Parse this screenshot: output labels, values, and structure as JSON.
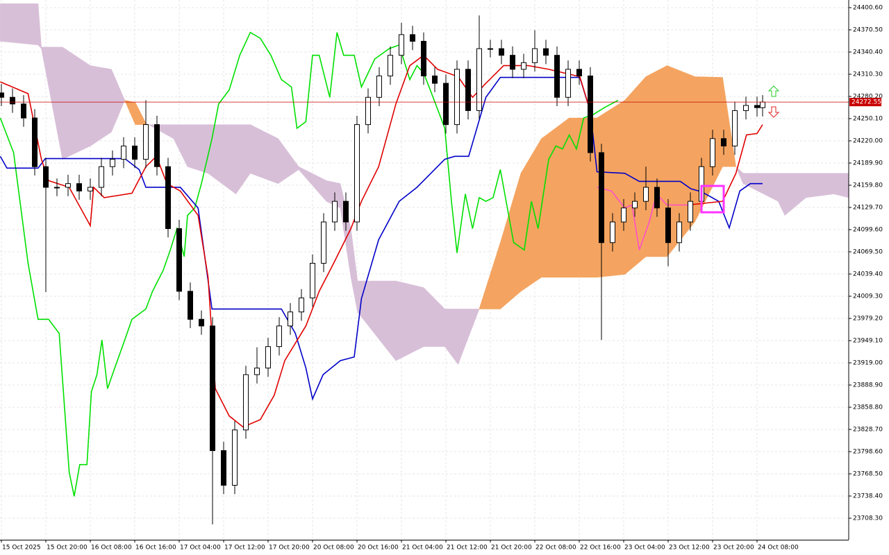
{
  "chart_data": {
    "type": "candlestick",
    "xlim": [
      -0.25,
      152.5
    ],
    "ylim": [
      23679.15,
      24410.95
    ],
    "grid": true,
    "xticks": [
      {
        "value": 0,
        "label": "15 Oct 2025"
      },
      {
        "value": 8,
        "label": "15 Oct 20:00"
      },
      {
        "value": 16,
        "label": "16 Oct 08:00"
      },
      {
        "value": 24,
        "label": "16 Oct 16:00"
      },
      {
        "value": 32,
        "label": "17 Oct 04:00"
      },
      {
        "value": 40,
        "label": "17 Oct 12:00"
      },
      {
        "value": 48,
        "label": "17 Oct 20:00"
      },
      {
        "value": 56,
        "label": "20 Oct 08:00"
      },
      {
        "value": 64,
        "label": "20 Oct 16:00"
      },
      {
        "value": 72,
        "label": "21 Oct 04:00"
      },
      {
        "value": 80,
        "label": "21 Oct 12:00"
      },
      {
        "value": 88,
        "label": "21 Oct 20:00"
      },
      {
        "value": 96,
        "label": "22 Oct 08:00"
      },
      {
        "value": 104,
        "label": "22 Oct 16:00"
      },
      {
        "value": 112,
        "label": "23 Oct 04:00"
      },
      {
        "value": 120,
        "label": "23 Oct 12:00"
      },
      {
        "value": 128,
        "label": "23 Oct 20:00"
      },
      {
        "value": 136,
        "label": "24 Oct 08:00"
      }
    ],
    "yticks": [
      {
        "value": 24400.6,
        "label": "24400.60"
      },
      {
        "value": 24370.5,
        "label": "24370.50"
      },
      {
        "value": 24340.4,
        "label": "24340.40"
      },
      {
        "value": 24310.3,
        "label": "24310.30"
      },
      {
        "value": 24280.2,
        "label": "24280.20"
      },
      {
        "value": 24250.1,
        "label": "24250.10"
      },
      {
        "value": 24220,
        "label": "24220.00"
      },
      {
        "value": 24189.9,
        "label": "24189.90"
      },
      {
        "value": 24159.8,
        "label": "24159.80"
      },
      {
        "value": 24129.7,
        "label": "24129.70"
      },
      {
        "value": 24099.6,
        "label": "24099.60"
      },
      {
        "value": 24069.5,
        "label": "24069.50"
      },
      {
        "value": 24039.4,
        "label": "24039.40"
      },
      {
        "value": 24009.3,
        "label": "24009.30"
      },
      {
        "value": 23979.2,
        "label": "23979.20"
      },
      {
        "value": 23949.1,
        "label": "23949.10"
      },
      {
        "value": 23919,
        "label": "23919.00"
      },
      {
        "value": 23888.9,
        "label": "23888.90"
      },
      {
        "value": 23858.8,
        "label": "23858.80"
      },
      {
        "value": 23828.7,
        "label": "23828.70"
      },
      {
        "value": 23798.6,
        "label": "23798.60"
      },
      {
        "value": 23768.5,
        "label": "23768.50"
      },
      {
        "value": 23738.4,
        "label": "23738.40"
      },
      {
        "value": 23708.3,
        "label": "23708.30"
      }
    ],
    "last_price": 24272.55,
    "last_price_color": "#c80000",
    "candles": {
      "up_color": "#ffffff",
      "down_color": "#000000",
      "edge_color": "#000000",
      "x": [
        0,
        2,
        4,
        6,
        8,
        10,
        12,
        14,
        16,
        18,
        20,
        22,
        24,
        26,
        28,
        30,
        32,
        34,
        36,
        38,
        40,
        42,
        44,
        46,
        48,
        50,
        52,
        54,
        56,
        58,
        60,
        62,
        64,
        66,
        68,
        70,
        72,
        74,
        76,
        78,
        80,
        82,
        84,
        86,
        88,
        90,
        92,
        94,
        96,
        98,
        100,
        102,
        104,
        106,
        108,
        110,
        112,
        114,
        116,
        118,
        120,
        122,
        124,
        126,
        128,
        130,
        132,
        134,
        136,
        137
      ],
      "ohlc": [
        [
          24285,
          24297,
          24267,
          24279
        ],
        [
          24279,
          24291,
          24258,
          24270
        ],
        [
          24270,
          24282,
          24239,
          24251
        ],
        [
          24251,
          24263,
          24173,
          24185
        ],
        [
          24185,
          24197,
          24015,
          24157
        ],
        [
          24157,
          24169,
          24145,
          24157
        ],
        [
          24157,
          24174,
          24145,
          24162
        ],
        [
          24162,
          24174,
          24140,
          24152
        ],
        [
          24152,
          24169,
          24140,
          24157
        ],
        [
          24157,
          24197,
          24145,
          24185
        ],
        [
          24185,
          24207,
          24173,
          24195
        ],
        [
          24195,
          24225,
          24183,
          24213
        ],
        [
          24213,
          24225,
          24183,
          24195
        ],
        [
          24195,
          24275,
          24183,
          24242
        ],
        [
          24242,
          24254,
          24173,
          24185
        ],
        [
          24185,
          24197,
          24089,
          24101
        ],
        [
          24101,
          24113,
          24004,
          24016
        ],
        [
          24016,
          24028,
          23966,
          23978
        ],
        [
          23978,
          23990,
          23957,
          23969
        ],
        [
          23969,
          23981,
          23700,
          23800
        ],
        [
          23800,
          23812,
          23741,
          23753
        ],
        [
          23753,
          23840,
          23741,
          23828
        ],
        [
          23828,
          23915,
          23816,
          23903
        ],
        [
          23903,
          23940,
          23891,
          23912
        ],
        [
          23912,
          23953,
          23900,
          23941
        ],
        [
          23941,
          23981,
          23929,
          23969
        ],
        [
          23969,
          24000,
          23957,
          23988
        ],
        [
          23988,
          24019,
          23976,
          24007
        ],
        [
          24007,
          24066,
          23995,
          24054
        ],
        [
          24054,
          24122,
          24042,
          24110
        ],
        [
          24110,
          24150,
          24098,
          24138
        ],
        [
          24138,
          24150,
          24098,
          24110
        ],
        [
          24110,
          24254,
          24098,
          24242
        ],
        [
          24242,
          24291,
          24230,
          24279
        ],
        [
          24279,
          24320,
          24267,
          24308
        ],
        [
          24308,
          24348,
          24296,
          24336
        ],
        [
          24336,
          24380,
          24324,
          24364
        ],
        [
          24364,
          24376,
          24343,
          24355
        ],
        [
          24355,
          24367,
          24296,
          24308
        ],
        [
          24308,
          24320,
          24286,
          24298
        ],
        [
          24298,
          24310,
          24230,
          24242
        ],
        [
          24242,
          24329,
          24230,
          24317
        ],
        [
          24317,
          24329,
          24249,
          24261
        ],
        [
          24261,
          24390,
          24249,
          24345
        ],
        [
          24345,
          24357,
          24333,
          24345
        ],
        [
          24345,
          24357,
          24324,
          24336
        ],
        [
          24336,
          24348,
          24305,
          24317
        ],
        [
          24317,
          24338,
          24305,
          24326
        ],
        [
          24326,
          24370,
          24314,
          24345
        ],
        [
          24345,
          24357,
          24324,
          24336
        ],
        [
          24336,
          24348,
          24267,
          24279
        ],
        [
          24279,
          24329,
          24267,
          24317
        ],
        [
          24317,
          24329,
          24296,
          24308
        ],
        [
          24308,
          24320,
          24192,
          24204
        ],
        [
          24204,
          24216,
          23950,
          24082
        ],
        [
          24082,
          24122,
          24070,
          24110
        ],
        [
          24110,
          24141,
          24098,
          24129
        ],
        [
          24129,
          24150,
          24117,
          24138
        ],
        [
          24138,
          24185,
          24126,
          24157
        ],
        [
          24157,
          24169,
          24117,
          24129
        ],
        [
          24129,
          24141,
          24050,
          24082
        ],
        [
          24082,
          24122,
          24070,
          24110
        ],
        [
          24110,
          24150,
          24098,
          24138
        ],
        [
          24138,
          24197,
          24126,
          24185
        ],
        [
          24185,
          24235,
          24173,
          24223
        ],
        [
          24223,
          24235,
          24201,
          24213
        ],
        [
          24213,
          24273,
          24201,
          24261
        ],
        [
          24261,
          24280,
          24249,
          24268
        ],
        [
          24268,
          24280,
          24253,
          24265
        ],
        [
          24265,
          24282,
          24253,
          24272.55
        ]
      ]
    },
    "cloud": {
      "bull_color": "#f4a460",
      "bear_color": "#d8bfd8",
      "x": [
        -0.2,
        6.6,
        7.2,
        11,
        16,
        19.8,
        22.2,
        24.1,
        26,
        31,
        33.5,
        37.2,
        42.2,
        44.8,
        49.8,
        53.5,
        58.5,
        61,
        62.9,
        64.1,
        71,
        76,
        79.8,
        82.2,
        86,
        89.8,
        93.5,
        97.2,
        102.2,
        107.2,
        112.2,
        116,
        119.8,
        124.8,
        129.8,
        132.2,
        133.5,
        139.8,
        141,
        144.8,
        149.8,
        152.5
      ],
      "senkou_a": [
        24355,
        24350,
        24345,
        24195,
        24213,
        24232,
        24275,
        24272,
        24244,
        24223,
        24185,
        24176,
        24148,
        24176,
        24162,
        24181,
        24138,
        24129,
        24035,
        23988,
        23922,
        23941,
        23941,
        23917,
        23992,
        24082,
        24176,
        24223,
        24251,
        24251,
        24275,
        24307,
        24322,
        24307,
        24306,
        24185,
        24162,
        24138,
        24119,
        24143,
        24148,
        24143
      ],
      "senkou_b": [
        24406,
        24406,
        24347,
        24347,
        24322,
        24317,
        24275,
        24242,
        24242,
        24242,
        24242,
        24242,
        24242,
        24242,
        24223,
        24185,
        24166,
        24162,
        24101,
        24030,
        24030,
        24021,
        23992,
        23992,
        23992,
        23992,
        24016,
        24035,
        24035,
        24035,
        24039,
        24063,
        24063,
        24110,
        24185,
        24185,
        24176,
        24176,
        24176,
        24176,
        24176,
        24176
      ]
    },
    "series": [
      {
        "color": "#00e000",
        "x": [
          -0.2,
          2.2,
          4.8,
          6.6,
          8.5,
          10.4,
          12.2,
          13.1,
          14.1,
          15.4,
          16.2,
          17.2,
          18.1,
          19.1,
          20.4,
          22.2,
          23.5,
          26,
          27.2,
          29.1,
          30.4,
          31.6,
          32.9,
          33.5,
          34.8,
          36,
          37.9,
          39.1,
          41,
          42.9,
          44.8,
          46.6,
          48.5,
          50.4,
          52.2,
          53.2,
          54.8,
          56,
          57.2,
          59.1,
          60.4,
          61.6,
          63.5,
          64.8,
          67.2,
          69.8,
          71.6,
          73.5,
          74.8,
          76,
          77.9,
          79.8,
          81,
          82,
          83.5,
          84.8,
          86,
          87.2,
          88.5,
          89.8,
          92.2,
          94.1,
          95.4,
          96.6,
          98.5,
          99.8,
          101,
          102.2,
          103.5,
          104.8,
          106.6,
          108.5,
          111
        ],
        "values": [
          24251,
          24204,
          24054,
          23978,
          23978,
          23959,
          23771,
          23738,
          23781,
          23781,
          23880,
          23903,
          23950,
          23884,
          23912,
          23950,
          23978,
          23992,
          24016,
          24044,
          24072,
          24101,
          24063,
          24119,
          24129,
          24162,
          24223,
          24270,
          24289,
          24336,
          24367,
          24359,
          24336,
          24303,
          24293,
          24237,
          24246,
          24336,
          24336,
          24279,
          24367,
          24336,
          24336,
          24293,
          24331,
          24345,
          24350,
          24303,
          24322,
          24312,
          24275,
          24237,
          24138,
          24068,
          24148,
          24101,
          24143,
          24138,
          24143,
          24181,
          24082,
          24072,
          24138,
          24101,
          24195,
          24213,
          24209,
          24228,
          24209,
          24251,
          24256,
          24265,
          24275
        ]
      },
      {
        "color": "#0000c8",
        "x": [
          -0.2,
          1,
          6.6,
          7.9,
          22.2,
          24.8,
          26,
          32.2,
          35.4,
          37.9,
          50.4,
          52.9,
          54.8,
          56,
          57.9,
          61,
          63.5,
          64.8,
          67.9,
          71.6,
          74.8,
          79.8,
          81.6,
          84.1,
          87.2,
          89.8,
          104.1,
          106,
          107.2,
          112.2,
          114.8,
          122.2,
          124.1,
          126,
          129.1,
          131,
          132.9,
          134.8,
          137
        ],
        "values": [
          24199,
          24183,
          24183,
          24196,
          24196,
          24181,
          24157,
          24157,
          24129,
          23992,
          23992,
          23959,
          23912,
          23870,
          23903,
          23922,
          23927,
          24006,
          24086,
          24138,
          24157,
          24195,
          24199,
          24199,
          24279,
          24306,
          24306,
          24260,
          24178,
          24176,
          24165,
          24165,
          24155,
          24151,
          24138,
          24102,
          24152,
          24162,
          24162
        ]
      },
      {
        "color": "#e00000",
        "x": [
          -0.2,
          4.8,
          7.2,
          8.5,
          12.2,
          16,
          16.6,
          18.5,
          23.5,
          26,
          27.9,
          29.8,
          32.2,
          35.4,
          37.2,
          38.5,
          41,
          43.5,
          46.6,
          49.1,
          51,
          54.8,
          57.2,
          59.8,
          62.9,
          64.8,
          67.9,
          71,
          73.5,
          76,
          78.5,
          82.2,
          84.8,
          87.2,
          90.4,
          94.8,
          98.5,
          104.1,
          106,
          114,
          123.5,
          129.8,
          132.2,
          134.1,
          136,
          137
        ],
        "values": [
          24300,
          24284,
          24195,
          24166,
          24157,
          24105,
          24157,
          24143,
          24149,
          24185,
          24199,
          24162,
          24152,
          24119,
          24035,
          23884,
          23847,
          23832,
          23842,
          23875,
          23922,
          23969,
          24016,
          24054,
          24101,
          24138,
          24185,
          24270,
          24322,
          24336,
          24317,
          24307,
          24279,
          24298,
          24322,
          24322,
          24317,
          24307,
          24260,
          null,
          24133,
          24138,
          24176,
          24228,
          24230,
          24242
        ]
      },
      {
        "color": "#ff4fc8",
        "x": [
          107.2,
          109.8,
          112.2,
          113.5,
          114.8,
          116.6,
          117.9,
          119.8,
          123.5
        ],
        "values": [
          24157,
          24152,
          24129,
          24133,
          24072,
          24110,
          24148,
          24133,
          24133
        ]
      }
    ]
  }
}
